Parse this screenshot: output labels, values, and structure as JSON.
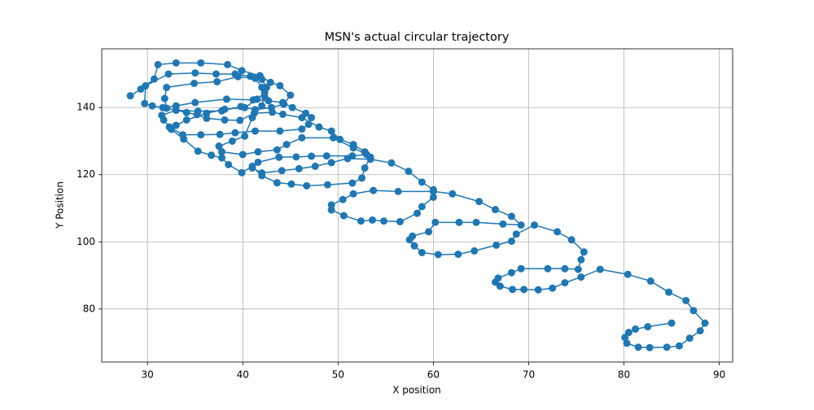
{
  "chart_data": {
    "type": "line",
    "title": "MSN's actual circular trajectory",
    "x_label": "X position",
    "y_label": "Y Position",
    "x": [
      28.2,
      29.3,
      30.7,
      31.1,
      33.0,
      35.6,
      38.4,
      39.9,
      41.8,
      42.9,
      43.9,
      45.0,
      44.3,
      43.0,
      41.3,
      39.8,
      37.8,
      35.3,
      33.0,
      31.5,
      31.7,
      32.3,
      33.7,
      35.6,
      37.6,
      39.2,
      41.3,
      43.9,
      46.2,
      46.9,
      47.2,
      46.6,
      45.2,
      44.2,
      42.7,
      41.1,
      38.3,
      35.0,
      33.0,
      31.6,
      30.5,
      29.7,
      29.8,
      32.2,
      35.0,
      37.2,
      39.2,
      40.8,
      42.0,
      42.5,
      42.3,
      41.5,
      40.2,
      38.1,
      36.2,
      34.1,
      33.0,
      32.5,
      33.8,
      35.3,
      36.7,
      37.8,
      38.5,
      39.9,
      41.0,
      42.0,
      43.6,
      45.1,
      46.7,
      48.9,
      51.5,
      52.5,
      52.8,
      53.4,
      52.8,
      51.6,
      50.2,
      49.3,
      48.0,
      46.2,
      44.2,
      43.1,
      41.2,
      39.7,
      38.1,
      36.2,
      35.2,
      34.1,
      32.0,
      31.8,
      32.0,
      34.9,
      37.3,
      39.5,
      41.3,
      42.0,
      42.3,
      42.0,
      41.0,
      40.2,
      38.9,
      37.5,
      37.8,
      40.0,
      41.6,
      43.6,
      44.6,
      46.2,
      49.5,
      51.6,
      53.0,
      51.5,
      48.8,
      47.2,
      45.6,
      43.8,
      41.6,
      41.0,
      42.0,
      44.1,
      45.9,
      47.6,
      49.3,
      51.0,
      53.4,
      55.6,
      57.4,
      58.8,
      60.0,
      60.0,
      58.8,
      58.3,
      56.5,
      54.8,
      53.6,
      52.4,
      50.6,
      49.3,
      49.3,
      50.5,
      51.6,
      53.7,
      56.3,
      60.0,
      62.0,
      64.8,
      66.5,
      68.2,
      69.2,
      67.3,
      64.5,
      62.7,
      60.2,
      59.5,
      57.8,
      57.5,
      58.0,
      58.8,
      60.5,
      62.6,
      64.3,
      66.6,
      68.2,
      68.7,
      70.6,
      73.0,
      74.5,
      75.8,
      75.5,
      75.2,
      73.8,
      72.0,
      69.2,
      68.2,
      66.8,
      66.5,
      67.0,
      68.3,
      69.5,
      71.0,
      72.5,
      73.8,
      75.5,
      77.5,
      80.4,
      82.8,
      84.7,
      86.5,
      87.3,
      88.5,
      88.0,
      86.9,
      85.8,
      84.5,
      82.7,
      81.5,
      80.3,
      80.1,
      80.5,
      81.2,
      82.5,
      85.0
    ],
    "values": [
      143.5,
      145.5,
      148.5,
      152.8,
      153.3,
      153.3,
      152.8,
      151.0,
      149.5,
      147.5,
      146.5,
      143.7,
      141.0,
      140.0,
      139.4,
      140.3,
      139.0,
      138.9,
      139.2,
      137.7,
      136.3,
      134.2,
      131.9,
      131.9,
      132.0,
      132.5,
      133.0,
      133.0,
      133.6,
      135.0,
      137.0,
      138.3,
      140.0,
      141.5,
      142.0,
      142.3,
      142.5,
      141.5,
      140.5,
      140.0,
      140.5,
      141.2,
      146.5,
      150.0,
      150.3,
      150.0,
      150.0,
      149.3,
      148.4,
      146.0,
      144.5,
      142.5,
      140.0,
      139.5,
      138.3,
      136.3,
      134.7,
      133.5,
      130.6,
      127.0,
      125.8,
      125.0,
      123.0,
      120.6,
      122.5,
      119.7,
      117.6,
      117.2,
      116.7,
      117.0,
      117.5,
      119.0,
      122.0,
      125.2,
      126.8,
      129.0,
      130.5,
      133.0,
      134.2,
      137.0,
      138.0,
      138.6,
      138.3,
      136.2,
      136.3,
      136.8,
      137.9,
      138.5,
      139.8,
      142.7,
      146.0,
      147.2,
      147.7,
      149.2,
      148.7,
      146.0,
      143.2,
      140.5,
      137.0,
      131.5,
      130.0,
      128.5,
      126.8,
      126.0,
      126.8,
      127.4,
      129.0,
      131.0,
      131.0,
      128.0,
      126.0,
      125.6,
      125.6,
      125.5,
      125.3,
      125.2,
      123.7,
      122.0,
      120.5,
      121.2,
      121.8,
      122.5,
      123.6,
      124.8,
      124.6,
      123.5,
      121.0,
      117.8,
      115.5,
      113.3,
      110.5,
      108.5,
      106.0,
      106.2,
      106.5,
      106.2,
      107.8,
      109.5,
      111.0,
      112.6,
      114.3,
      115.3,
      115.0,
      115.0,
      114.3,
      112.0,
      109.6,
      107.6,
      105.0,
      105.3,
      105.8,
      105.8,
      105.8,
      103.0,
      101.7,
      100.6,
      98.8,
      96.8,
      96.2,
      96.3,
      97.3,
      99.0,
      100.2,
      102.3,
      105.0,
      103.0,
      100.6,
      97.0,
      94.7,
      91.8,
      92.0,
      92.0,
      92.0,
      90.8,
      89.2,
      88.0,
      86.8,
      85.8,
      85.8,
      85.7,
      86.2,
      87.8,
      89.5,
      91.8,
      90.3,
      88.3,
      85.0,
      82.5,
      79.5,
      75.8,
      73.5,
      71.3,
      69.0,
      68.6,
      68.5,
      68.6,
      69.8,
      71.5,
      73.0,
      74.0,
      74.7,
      75.8
    ],
    "color": "#1f77b4",
    "xlim": [
      25.2,
      91.4
    ],
    "ylim": [
      64.2,
      157.5
    ],
    "xticks": [
      30,
      40,
      50,
      60,
      70,
      80,
      90
    ],
    "yticks": [
      80,
      100,
      120,
      140
    ],
    "grid": true
  }
}
